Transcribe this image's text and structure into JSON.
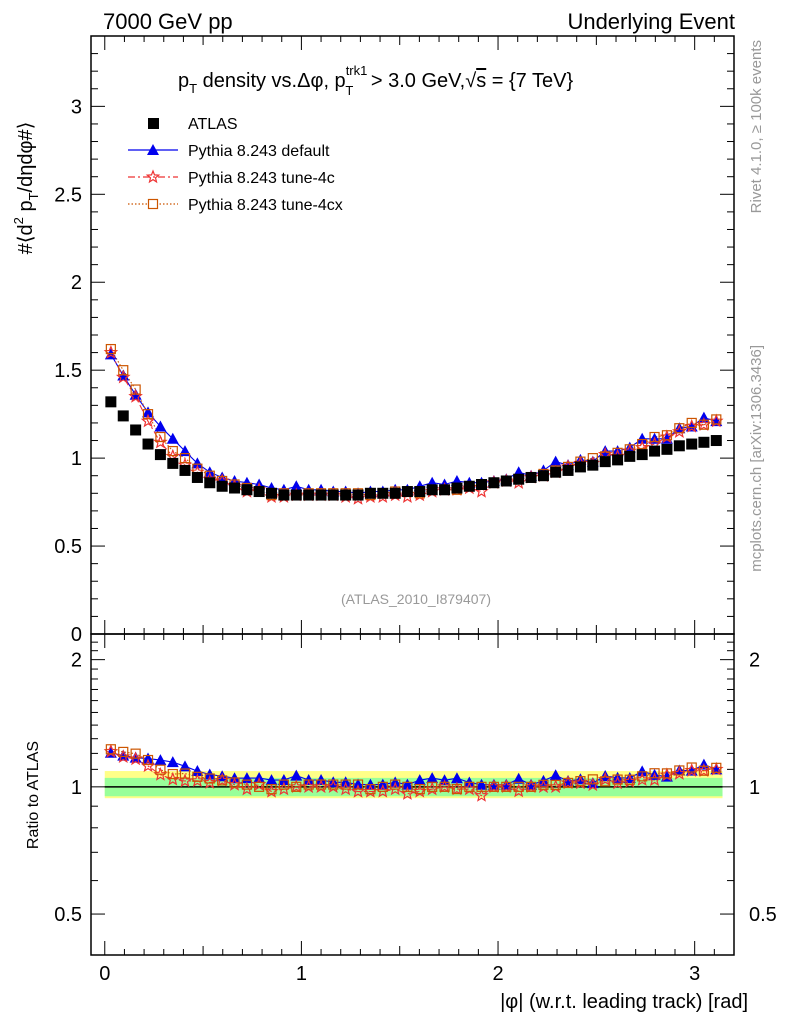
{
  "header": {
    "left": "7000 GeV pp",
    "right": "Underlying Event"
  },
  "side_labels": {
    "rivet": "Rivet 4.1.0, ≥ 100k events",
    "mcplots": "mcplots.cern.ch [arXiv:1306.3436]"
  },
  "chart_data": {
    "type": "scatter",
    "title": "pT density vs.Δφ, pT trk1 > 3.0 GeV, √s = {7 TeV}",
    "title_parts": {
      "p": "p",
      "T": "T",
      "rest1": " density vs.Δφ, p",
      "sup": "trk1",
      "rest2": " > 3.0 GeV,",
      "sqrt": "√",
      "s": "s",
      "rest3": " = {7 TeV}"
    },
    "watermark": "(ATLAS_2010_I879407)",
    "xlabel": "|φ| (w.r.t. leading track) [rad]",
    "ylabel": "#⟨d² pT/dηdφ#⟩",
    "ylabel_parts": {
      "a": "#⟨d",
      "sup2": "2",
      "p": " p",
      "T": "T",
      "rest": "/dηdφ#⟩"
    },
    "ratio_ylabel": "Ratio to ATLAS",
    "xlim": [
      -0.07,
      3.2
    ],
    "ylim": [
      0,
      3.4
    ],
    "ratio_ylim": [
      0.4,
      2.3
    ],
    "x_ticks": [
      "0",
      "1",
      "2",
      "3"
    ],
    "x_tick_values": [
      0,
      1,
      2,
      3
    ],
    "y_ticks": [
      "0",
      "0.5",
      "1",
      "1.5",
      "2",
      "2.5",
      "3"
    ],
    "y_tick_values": [
      0,
      0.5,
      1,
      1.5,
      2,
      2.5,
      3
    ],
    "ratio_ticks": [
      "0.5",
      "1",
      "2"
    ],
    "ratio_tick_values": [
      0.5,
      1,
      2
    ],
    "ratio_band_inner": [
      0.95,
      1.05
    ],
    "ratio_band_outer": [
      0.94,
      1.09
    ],
    "x": [
      0.031,
      0.094,
      0.157,
      0.22,
      0.283,
      0.346,
      0.408,
      0.471,
      0.534,
      0.597,
      0.66,
      0.723,
      0.785,
      0.848,
      0.911,
      0.974,
      1.037,
      1.1,
      1.162,
      1.225,
      1.288,
      1.351,
      1.414,
      1.477,
      1.539,
      1.602,
      1.665,
      1.728,
      1.791,
      1.854,
      1.916,
      1.979,
      2.042,
      2.105,
      2.168,
      2.231,
      2.293,
      2.356,
      2.419,
      2.482,
      2.545,
      2.608,
      2.67,
      2.733,
      2.796,
      2.859,
      2.922,
      2.985,
      3.047,
      3.11
    ],
    "legend_position": "top-left",
    "series": [
      {
        "name": "ATLAS",
        "color": "#000000",
        "marker": "square-filled",
        "values": [
          1.32,
          1.24,
          1.16,
          1.08,
          1.02,
          0.97,
          0.93,
          0.89,
          0.86,
          0.84,
          0.83,
          0.82,
          0.81,
          0.8,
          0.79,
          0.79,
          0.79,
          0.79,
          0.79,
          0.79,
          0.79,
          0.8,
          0.8,
          0.8,
          0.81,
          0.81,
          0.82,
          0.82,
          0.83,
          0.84,
          0.85,
          0.86,
          0.87,
          0.88,
          0.89,
          0.9,
          0.92,
          0.93,
          0.95,
          0.96,
          0.98,
          0.99,
          1.01,
          1.02,
          1.04,
          1.05,
          1.07,
          1.08,
          1.09,
          1.1
        ]
      },
      {
        "name": "Pythia 8.243 default",
        "color": "#0000ee",
        "marker": "triangle-filled",
        "line": "solid",
        "values": [
          1.59,
          1.47,
          1.36,
          1.26,
          1.18,
          1.11,
          1.04,
          0.97,
          0.92,
          0.89,
          0.87,
          0.86,
          0.85,
          0.83,
          0.82,
          0.84,
          0.82,
          0.82,
          0.81,
          0.81,
          0.8,
          0.81,
          0.81,
          0.82,
          0.82,
          0.84,
          0.86,
          0.85,
          0.87,
          0.86,
          0.86,
          0.87,
          0.88,
          0.92,
          0.9,
          0.93,
          0.98,
          0.96,
          0.99,
          0.98,
          1.04,
          1.04,
          1.06,
          1.11,
          1.11,
          1.11,
          1.17,
          1.18,
          1.23,
          1.21
        ]
      },
      {
        "name": "Pythia 8.243 tune-4c",
        "color": "#ee3333",
        "marker": "star-open",
        "line": "dashdot",
        "values": [
          1.6,
          1.46,
          1.35,
          1.21,
          1.09,
          1.01,
          0.96,
          0.92,
          0.88,
          0.87,
          0.84,
          0.81,
          0.82,
          0.78,
          0.78,
          0.79,
          0.79,
          0.79,
          0.79,
          0.78,
          0.77,
          0.78,
          0.78,
          0.79,
          0.78,
          0.79,
          0.81,
          0.82,
          0.82,
          0.83,
          0.81,
          0.86,
          0.87,
          0.86,
          0.89,
          0.9,
          0.92,
          0.95,
          0.97,
          0.97,
          1.02,
          1.01,
          1.04,
          1.06,
          1.08,
          1.12,
          1.15,
          1.18,
          1.19,
          1.21
        ]
      },
      {
        "name": "Pythia 8.243 tune-4cx",
        "color": "#cc5500",
        "marker": "square-open",
        "line": "dotted",
        "values": [
          1.62,
          1.5,
          1.39,
          1.25,
          1.12,
          1.04,
          1.0,
          0.94,
          0.9,
          0.87,
          0.85,
          0.83,
          0.81,
          0.79,
          0.8,
          0.79,
          0.8,
          0.8,
          0.8,
          0.8,
          0.8,
          0.79,
          0.8,
          0.81,
          0.81,
          0.8,
          0.82,
          0.82,
          0.82,
          0.84,
          0.85,
          0.86,
          0.87,
          0.88,
          0.89,
          0.91,
          0.93,
          0.95,
          0.98,
          1.0,
          1.01,
          1.03,
          1.05,
          1.08,
          1.12,
          1.13,
          1.17,
          1.2,
          1.19,
          1.22
        ]
      }
    ]
  }
}
